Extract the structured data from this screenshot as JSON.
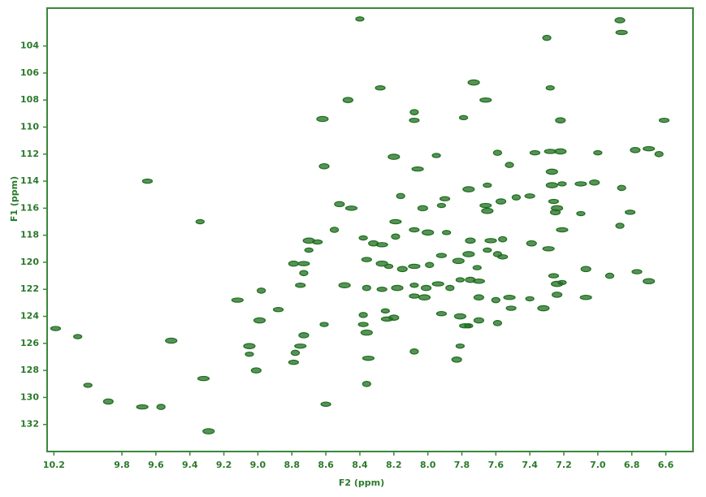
{
  "chart_data": {
    "type": "scatter",
    "xlabel": "F2 (ppm)",
    "ylabel": "F1 (ppm)",
    "xlim": [
      10.24,
      6.44
    ],
    "ylim": [
      101.2,
      134.0
    ],
    "xticks": [
      10.2,
      9.8,
      9.6,
      9.4,
      9.2,
      {
        "value": 9,
        "label": "9.0"
      },
      8.8,
      8.6,
      8.4,
      8.2,
      {
        "value": 8,
        "label": "8.0"
      },
      7.8,
      7.6,
      7.4,
      7.2,
      {
        "value": 7,
        "label": "7.0"
      },
      6.8,
      6.6
    ],
    "yticks": [
      104,
      106,
      108,
      110,
      112,
      114,
      116,
      118,
      120,
      122,
      124,
      126,
      128,
      130,
      132
    ],
    "color": "#1f6e1f",
    "x": [
      8.4,
      6.87,
      6.86,
      7.3,
      8.28,
      7.73,
      7.28,
      8.47,
      7.66,
      8.08,
      8.08,
      8.62,
      7.79,
      7.22,
      7.28,
      7.59,
      7.37,
      7.22,
      7.0,
      6.78,
      6.7,
      6.64,
      6.61,
      8.2,
      7.95,
      8.61,
      8.06,
      7.52,
      9.65,
      7.27,
      9.34,
      8.52,
      8.45,
      8.16,
      7.9,
      7.76,
      7.65,
      7.57,
      7.66,
      7.48,
      7.4,
      7.27,
      7.21,
      7.02,
      7.1,
      6.86,
      7.26,
      7.24,
      7.1,
      7.25,
      7.21,
      6.87,
      6.81,
      7.65,
      7.92,
      8.03,
      8.19,
      8.55,
      8.65,
      8.7,
      8.7,
      8.79,
      8.73,
      8.73,
      8.75,
      8.49,
      8.38,
      8.32,
      8.27,
      8.19,
      8.08,
      8.0,
      7.89,
      7.75,
      7.63,
      7.56,
      8.36,
      8.27,
      8.23,
      8.15,
      8.08,
      7.99,
      7.92,
      7.82,
      7.81,
      7.75,
      7.7,
      7.59,
      7.56,
      7.76,
      7.65,
      7.39,
      7.29,
      8.36,
      8.27,
      8.18,
      8.08,
      8.01,
      7.94,
      7.87,
      8.08,
      8.02,
      7.71,
      7.7,
      7.52,
      7.6,
      7.26,
      7.24,
      7.21,
      7.07,
      7.07,
      6.93,
      6.77,
      6.7,
      7.4,
      7.24,
      9.12,
      8.98,
      8.88,
      8.99,
      8.61,
      8.73,
      8.75,
      8.78,
      8.79,
      9.05,
      9.05,
      9.01,
      9.32,
      8.38,
      8.38,
      8.36,
      8.25,
      8.2,
      8.24,
      8.08,
      7.92,
      7.81,
      7.76,
      7.7,
      7.78,
      7.59,
      7.51,
      7.32,
      7.81,
      7.83,
      8.35,
      8.36,
      8.6,
      9.29,
      10.0,
      9.88,
      9.68,
      9.57,
      10.19,
      9.51,
      10.06
    ],
    "values": [
      102.0,
      102.1,
      103.0,
      103.4,
      107.1,
      106.7,
      107.1,
      108.0,
      108.0,
      108.9,
      109.5,
      109.4,
      109.3,
      109.5,
      111.8,
      111.9,
      111.9,
      111.8,
      111.9,
      111.7,
      111.6,
      112.0,
      109.5,
      112.2,
      112.1,
      112.9,
      113.1,
      112.8,
      114.0,
      113.3,
      117.0,
      115.7,
      116.0,
      115.1,
      115.3,
      114.6,
      114.3,
      115.5,
      115.8,
      115.2,
      115.1,
      114.3,
      114.2,
      114.1,
      114.2,
      114.5,
      115.5,
      116.0,
      116.4,
      116.3,
      117.6,
      117.3,
      116.3,
      116.2,
      115.8,
      116.0,
      117.0,
      117.6,
      118.5,
      118.4,
      119.1,
      120.1,
      120.1,
      120.8,
      121.7,
      121.7,
      118.2,
      118.6,
      118.7,
      118.1,
      117.6,
      117.8,
      117.8,
      118.4,
      118.4,
      118.3,
      119.8,
      120.1,
      120.3,
      120.5,
      120.3,
      120.2,
      119.5,
      119.9,
      121.3,
      121.3,
      121.4,
      119.4,
      119.6,
      119.4,
      119.1,
      118.6,
      119.0,
      121.9,
      122.0,
      121.9,
      121.7,
      121.9,
      121.6,
      121.9,
      122.5,
      122.6,
      120.4,
      122.6,
      122.6,
      122.8,
      121.0,
      121.6,
      121.5,
      120.5,
      122.6,
      121.0,
      120.7,
      121.4,
      122.7,
      122.4,
      122.8,
      122.1,
      123.5,
      124.3,
      124.6,
      125.4,
      126.2,
      126.7,
      127.4,
      126.2,
      126.8,
      128.0,
      128.6,
      123.9,
      124.6,
      125.2,
      123.6,
      124.1,
      124.2,
      126.6,
      123.8,
      124.0,
      124.7,
      124.3,
      124.7,
      124.5,
      123.4,
      123.4,
      126.2,
      127.2,
      127.1,
      129.0,
      130.5,
      132.5,
      129.1,
      130.3,
      130.7,
      130.7,
      124.9,
      125.8,
      125.5
    ]
  }
}
